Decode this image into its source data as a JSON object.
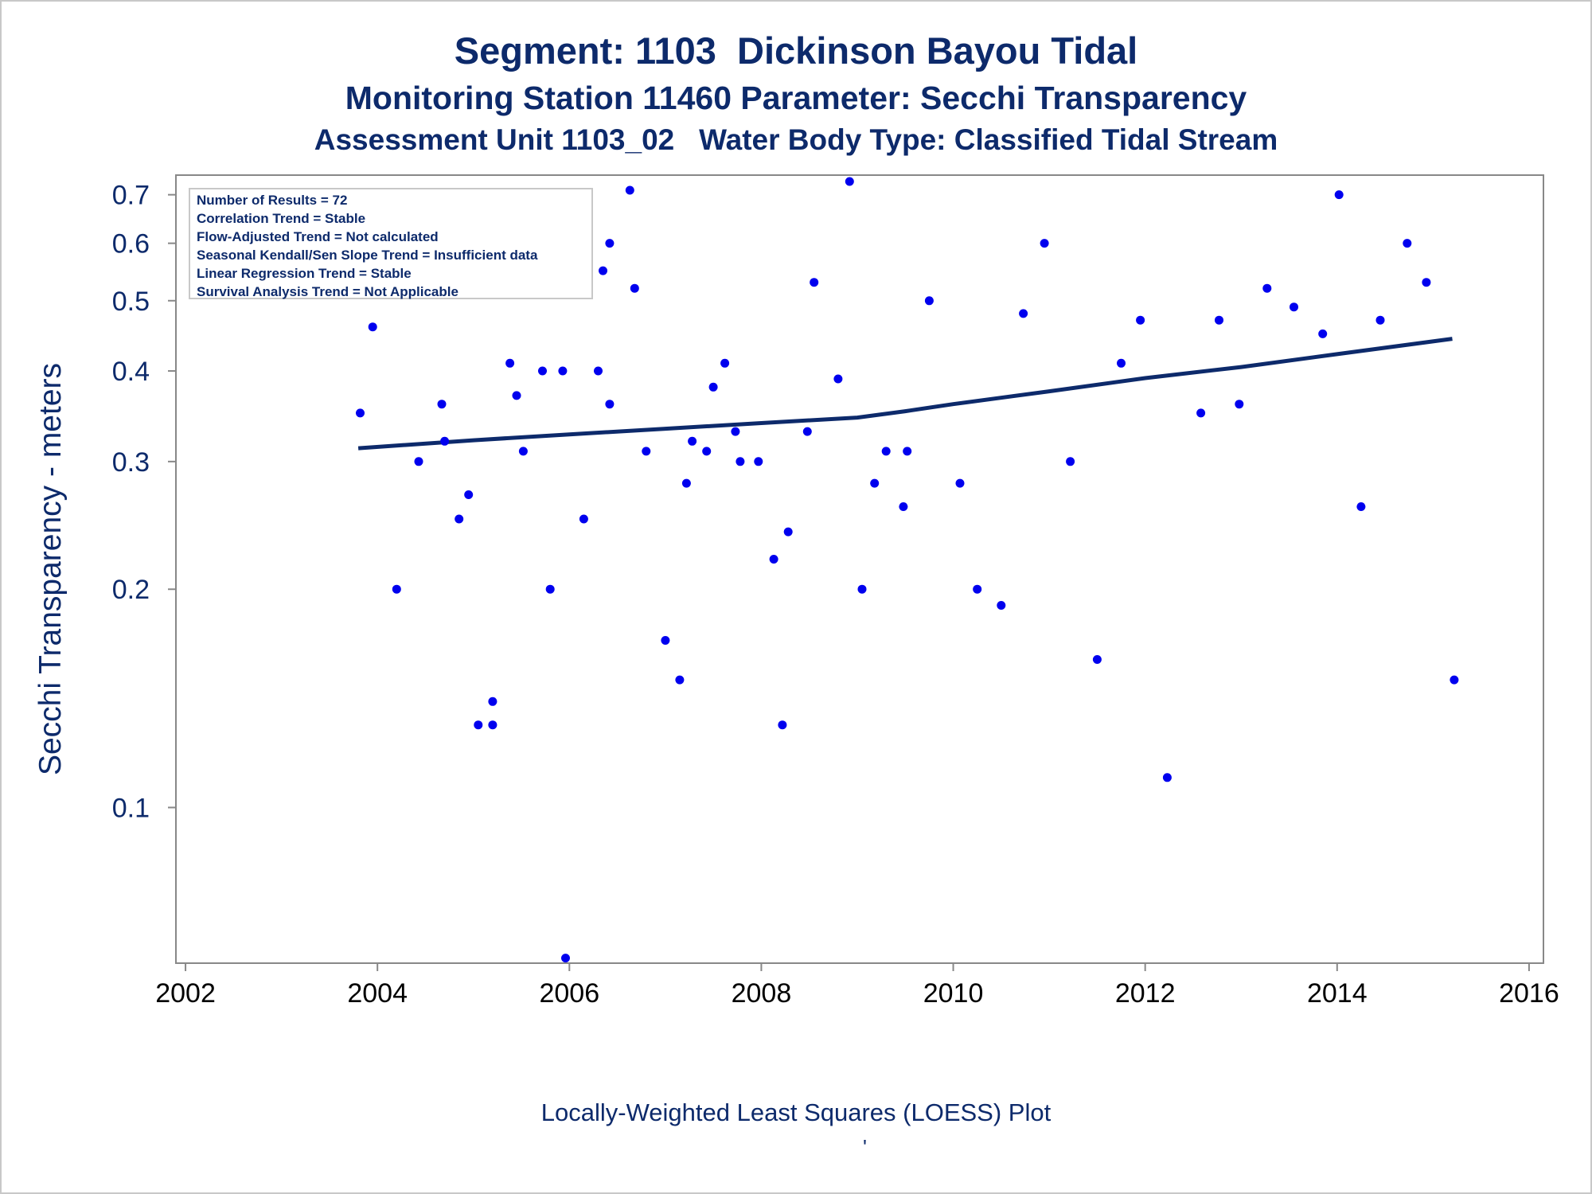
{
  "titles": {
    "line1": "Segment: 1103  Dickinson Bayou Tidal",
    "line2": "Monitoring Station 11460 Parameter: Secchi Transparency",
    "line3": "Assessment Unit 1103_02   Water Body Type: Classified Tidal Stream"
  },
  "footnote": "Locally-Weighted Least Squares (LOESS) Plot",
  "footnote_mark": "'",
  "legend": {
    "lines": [
      "Number of Results = 72",
      "Correlation Trend = Stable",
      "Flow-Adjusted Trend = Not calculated",
      "Seasonal Kendall/Sen Slope Trend = Insufficient data",
      "Linear Regression Trend = Stable",
      "Survival Analysis Trend = Not Applicable"
    ]
  },
  "colors": {
    "title": "#0d2a6b",
    "point": "#0000ee",
    "trend_line": "#0d2a6b",
    "axis": "#888888"
  },
  "chart_data": {
    "type": "scatter",
    "ylabel": "Secchi Transparency - meters",
    "xlabel": "",
    "y_scale": "log",
    "x_ticks": [
      "2002",
      "2004",
      "2006",
      "2008",
      "2010",
      "2012",
      "2014",
      "2016"
    ],
    "y_ticks": [
      "0.1",
      "0.2",
      "0.3",
      "0.4",
      "0.5",
      "0.6",
      "0.7"
    ],
    "xlim": [
      2001.9,
      2016.15
    ],
    "ylim": [
      0.061,
      0.745
    ],
    "grid": false,
    "legend_position": "top-left",
    "series": [
      {
        "type": "scatter",
        "points": [
          [
            2003.82,
            0.35
          ],
          [
            2003.95,
            0.46
          ],
          [
            2004.2,
            0.2
          ],
          [
            2004.43,
            0.3
          ],
          [
            2004.67,
            0.36
          ],
          [
            2004.7,
            0.32
          ],
          [
            2004.85,
            0.25
          ],
          [
            2004.95,
            0.27
          ],
          [
            2005.05,
            0.13
          ],
          [
            2005.2,
            0.13
          ],
          [
            2005.2,
            0.14
          ],
          [
            2005.38,
            0.41
          ],
          [
            2005.45,
            0.37
          ],
          [
            2005.52,
            0.31
          ],
          [
            2005.72,
            0.4
          ],
          [
            2005.8,
            0.2
          ],
          [
            2005.93,
            0.4
          ],
          [
            2005.96,
            0.062
          ],
          [
            2006.15,
            0.25
          ],
          [
            2006.2,
            0.6
          ],
          [
            2006.3,
            0.4
          ],
          [
            2006.35,
            0.55
          ],
          [
            2006.42,
            0.36
          ],
          [
            2006.42,
            0.6
          ],
          [
            2006.63,
            0.71
          ],
          [
            2006.68,
            0.52
          ],
          [
            2006.8,
            0.31
          ],
          [
            2007.0,
            0.17
          ],
          [
            2007.15,
            0.15
          ],
          [
            2007.22,
            0.28
          ],
          [
            2007.28,
            0.32
          ],
          [
            2007.43,
            0.31
          ],
          [
            2007.5,
            0.38
          ],
          [
            2007.62,
            0.41
          ],
          [
            2007.73,
            0.33
          ],
          [
            2007.78,
            0.3
          ],
          [
            2007.97,
            0.3
          ],
          [
            2008.13,
            0.22
          ],
          [
            2008.22,
            0.13
          ],
          [
            2008.28,
            0.24
          ],
          [
            2008.48,
            0.33
          ],
          [
            2008.55,
            0.53
          ],
          [
            2008.8,
            0.39
          ],
          [
            2008.92,
            0.73
          ],
          [
            2009.05,
            0.2
          ],
          [
            2009.18,
            0.28
          ],
          [
            2009.3,
            0.31
          ],
          [
            2009.48,
            0.26
          ],
          [
            2009.52,
            0.31
          ],
          [
            2009.75,
            0.5
          ],
          [
            2010.07,
            0.28
          ],
          [
            2010.25,
            0.2
          ],
          [
            2010.5,
            0.19
          ],
          [
            2010.73,
            0.48
          ],
          [
            2010.95,
            0.6
          ],
          [
            2011.22,
            0.3
          ],
          [
            2011.5,
            0.16
          ],
          [
            2011.75,
            0.41
          ],
          [
            2011.95,
            0.47
          ],
          [
            2012.23,
            0.11
          ],
          [
            2012.58,
            0.35
          ],
          [
            2012.77,
            0.47
          ],
          [
            2012.98,
            0.36
          ],
          [
            2013.27,
            0.52
          ],
          [
            2013.55,
            0.49
          ],
          [
            2013.85,
            0.45
          ],
          [
            2014.02,
            0.7
          ],
          [
            2014.25,
            0.26
          ],
          [
            2014.45,
            0.47
          ],
          [
            2014.73,
            0.6
          ],
          [
            2014.93,
            0.53
          ],
          [
            2015.22,
            0.15
          ]
        ]
      },
      {
        "type": "line",
        "points": [
          [
            2003.8,
            0.313
          ],
          [
            2005.0,
            0.321
          ],
          [
            2006.0,
            0.327
          ],
          [
            2007.0,
            0.333
          ],
          [
            2008.0,
            0.339
          ],
          [
            2009.0,
            0.345
          ],
          [
            2009.5,
            0.352
          ],
          [
            2010.0,
            0.36
          ],
          [
            2011.0,
            0.375
          ],
          [
            2012.0,
            0.391
          ],
          [
            2013.0,
            0.405
          ],
          [
            2014.0,
            0.422
          ],
          [
            2015.2,
            0.443
          ]
        ]
      }
    ]
  }
}
